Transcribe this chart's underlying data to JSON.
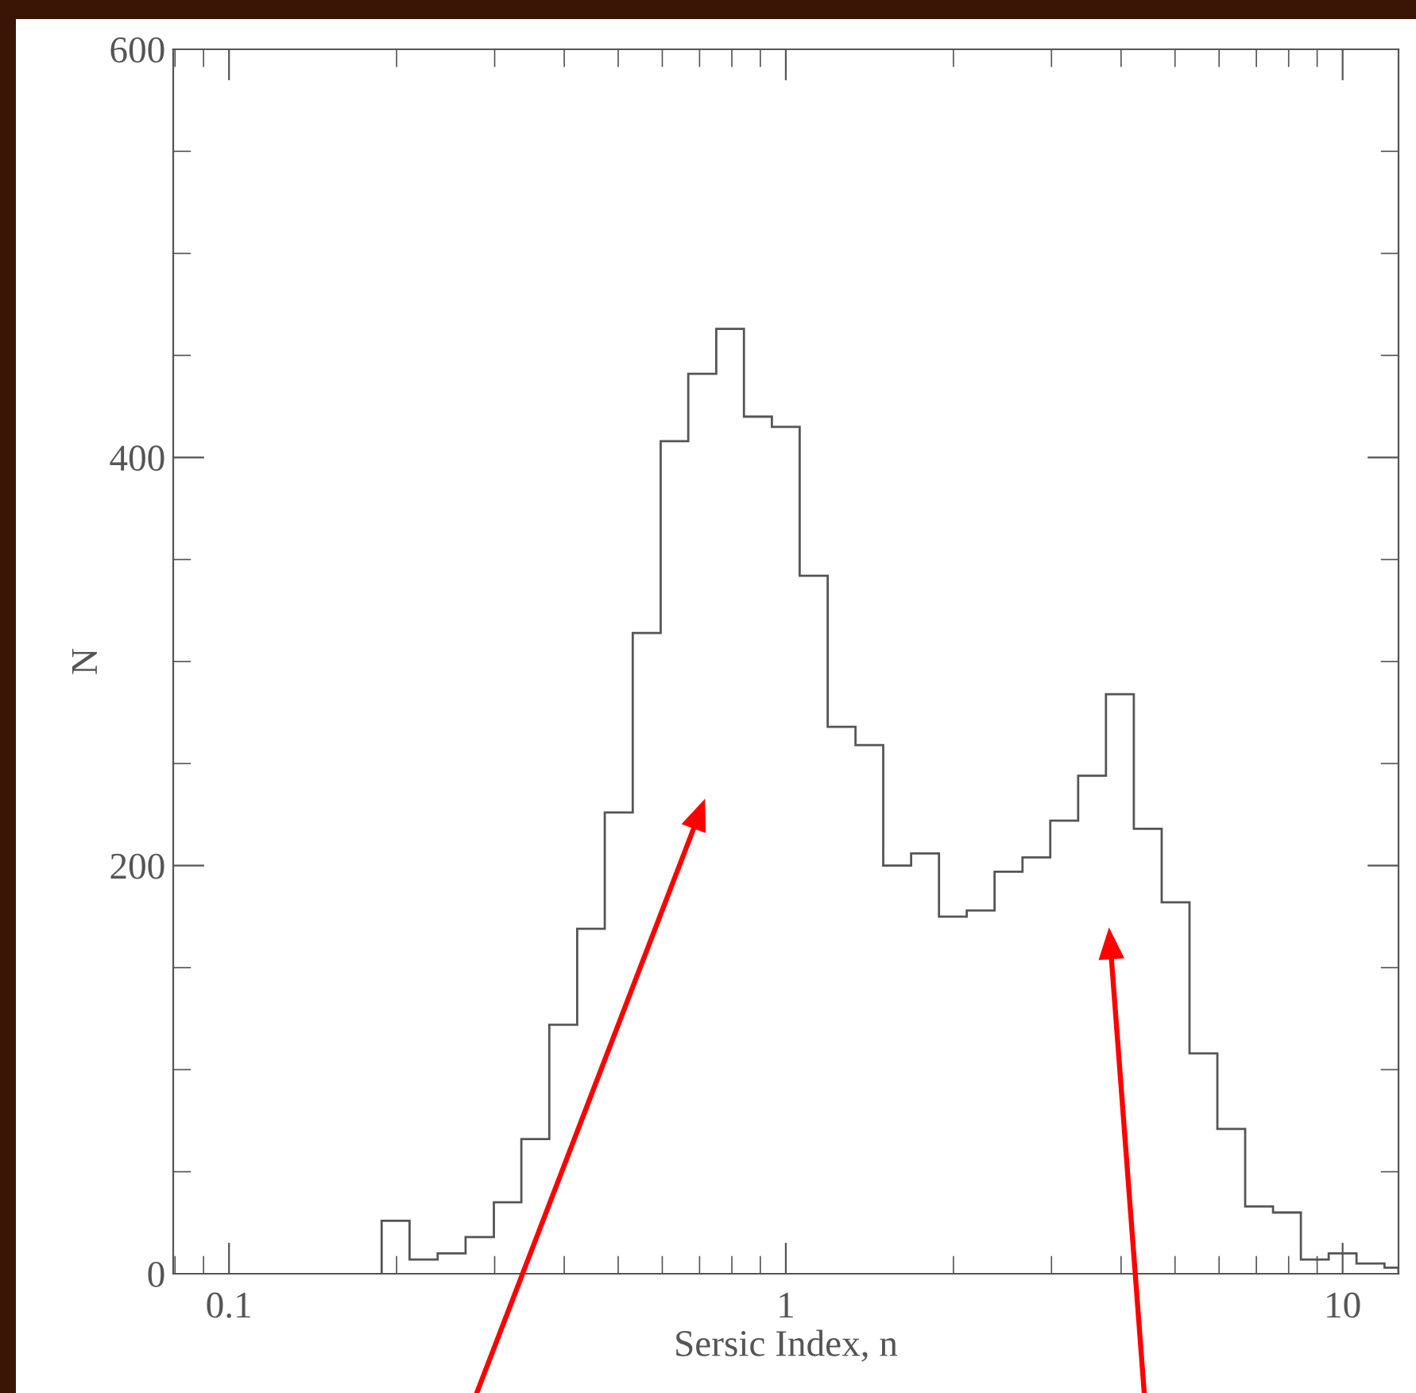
{
  "chart_data": {
    "type": "histogram",
    "xlabel": "Sersic Index, n",
    "ylabel": "N",
    "log": "x",
    "color": "#555555",
    "bins": [
      0.188,
      0.211,
      0.237,
      0.266,
      0.299,
      0.335,
      0.376,
      0.422,
      0.473,
      0.531,
      0.596,
      0.668,
      0.75,
      0.841,
      0.944,
      1.059,
      1.189,
      1.334,
      1.496,
      1.679,
      1.884,
      2.113,
      2.371,
      2.661,
      2.985,
      3.35,
      3.758,
      4.217,
      4.732,
      5.309,
      5.957,
      6.683,
      7.499,
      8.414,
      9.441,
      10.59,
      11.89,
      12.6
    ],
    "values": [
      26,
      7,
      10,
      18,
      35,
      66,
      122,
      169,
      226,
      314,
      408,
      441,
      463,
      420,
      415,
      342,
      268,
      259,
      200,
      206,
      175,
      178,
      197,
      204,
      222,
      244,
      284,
      218,
      182,
      108,
      71,
      33,
      30,
      7,
      10,
      5,
      3
    ],
    "xlim": [
      0.0794,
      12.6
    ],
    "xticks": [
      0.1,
      1,
      10
    ],
    "ylim": [
      0,
      600
    ],
    "yticks": [
      0,
      200,
      400,
      600
    ],
    "grid": false
  }
}
